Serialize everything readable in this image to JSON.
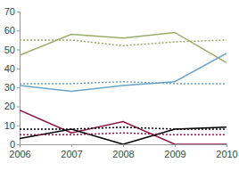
{
  "chart_data": {
    "type": "line",
    "x": [
      2006,
      2007,
      2008,
      2009,
      2010
    ],
    "xlim": [
      2006,
      2010
    ],
    "xticks": [
      2006,
      2007,
      2008,
      2009,
      2010
    ],
    "ylim": [
      0,
      70
    ],
    "yticks": [
      0,
      10,
      20,
      30,
      40,
      50,
      60,
      70
    ],
    "grid": false,
    "series": [
      {
        "color": "#9aac6a",
        "line_style": "solid",
        "values": [
          47,
          58,
          56,
          59,
          43
        ]
      },
      {
        "color": "#6ba3c6",
        "line_style": "solid",
        "values": [
          31,
          28,
          31,
          33,
          48
        ]
      },
      {
        "color": "#8a1445",
        "line_style": "solid",
        "values": [
          18,
          6,
          12,
          0,
          0
        ]
      },
      {
        "color": "#000000",
        "line_style": "solid",
        "values": [
          3,
          8,
          0,
          8,
          9
        ]
      },
      {
        "color": "#9aac6a",
        "line_style": "dotted",
        "values": [
          55,
          55,
          52,
          54,
          55
        ]
      },
      {
        "color": "#6ba3c6",
        "line_style": "dotted",
        "values": [
          32,
          32,
          33,
          32,
          32
        ]
      },
      {
        "color": "#000000",
        "line_style": "dotted",
        "values": [
          8,
          8,
          9,
          8,
          8
        ]
      },
      {
        "color": "#8a1445",
        "line_style": "dotted",
        "values": [
          5,
          5,
          6,
          5,
          5
        ]
      }
    ]
  }
}
